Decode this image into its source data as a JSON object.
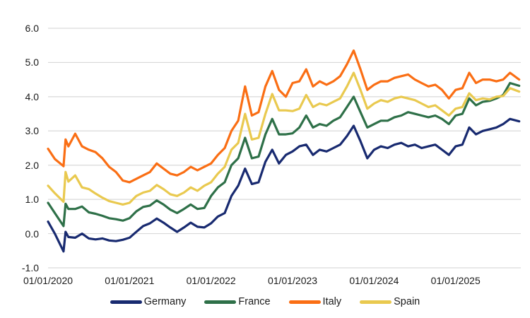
{
  "chart_data": {
    "type": "line",
    "title": "",
    "xlabel": "",
    "ylabel": "",
    "grid": "horizontal",
    "gridline_color": "#d9d9d9",
    "background_color": "#ffffff",
    "text_color": "#1a1a1a",
    "legend_position": "bottom",
    "xlim": [
      2020.0,
      2025.8
    ],
    "ylim": [
      -1.0,
      6.0
    ],
    "y_ticks": [
      6.0,
      5.0,
      4.0,
      3.0,
      2.0,
      1.0,
      0.0,
      -1.0
    ],
    "y_tick_labels": [
      "6.0",
      "5.0",
      "4.0",
      "3.0",
      "2.0",
      "1.0",
      "0.0",
      "-1.0"
    ],
    "x_tick_values": [
      2020,
      2021,
      2022,
      2023,
      2024,
      2025
    ],
    "x_tick_labels": [
      "01/01/2020",
      "01/01/2021",
      "01/01/2022",
      "01/01/2023",
      "01/01/2024",
      "01/01/2025"
    ],
    "x": [
      2020.0,
      2020.083,
      2020.19,
      2020.215,
      2020.25,
      2020.333,
      2020.417,
      2020.5,
      2020.583,
      2020.667,
      2020.75,
      2020.833,
      2020.917,
      2021.0,
      2021.083,
      2021.167,
      2021.25,
      2021.333,
      2021.417,
      2021.5,
      2021.583,
      2021.667,
      2021.75,
      2021.833,
      2021.917,
      2022.0,
      2022.083,
      2022.167,
      2022.25,
      2022.333,
      2022.417,
      2022.5,
      2022.583,
      2022.667,
      2022.75,
      2022.833,
      2022.917,
      2023.0,
      2023.083,
      2023.167,
      2023.25,
      2023.333,
      2023.417,
      2023.5,
      2023.583,
      2023.667,
      2023.75,
      2023.833,
      2023.917,
      2024.0,
      2024.083,
      2024.167,
      2024.25,
      2024.333,
      2024.417,
      2024.5,
      2024.583,
      2024.667,
      2024.75,
      2024.833,
      2024.917,
      2025.0,
      2025.083,
      2025.167,
      2025.25,
      2025.333,
      2025.417,
      2025.5,
      2025.583,
      2025.667,
      2025.78
    ],
    "series": [
      {
        "name": "Germany",
        "color": "#182a70",
        "values": [
          0.35,
          0.0,
          -0.52,
          0.05,
          -0.1,
          -0.12,
          0.0,
          -0.14,
          -0.17,
          -0.14,
          -0.2,
          -0.22,
          -0.18,
          -0.12,
          0.05,
          0.22,
          0.3,
          0.44,
          0.32,
          0.18,
          0.05,
          0.18,
          0.32,
          0.2,
          0.18,
          0.3,
          0.5,
          0.6,
          1.1,
          1.4,
          1.9,
          1.45,
          1.5,
          2.1,
          2.45,
          2.05,
          2.3,
          2.4,
          2.55,
          2.6,
          2.3,
          2.45,
          2.4,
          2.5,
          2.6,
          2.85,
          3.15,
          2.7,
          2.2,
          2.45,
          2.55,
          2.5,
          2.6,
          2.65,
          2.55,
          2.6,
          2.5,
          2.55,
          2.6,
          2.45,
          2.3,
          2.55,
          2.6,
          3.1,
          2.9,
          3.0,
          3.05,
          3.1,
          3.2,
          3.35,
          3.28
        ]
      },
      {
        "name": "France",
        "color": "#2e7048",
        "values": [
          0.9,
          0.6,
          0.22,
          0.87,
          0.72,
          0.72,
          0.79,
          0.62,
          0.58,
          0.52,
          0.45,
          0.42,
          0.38,
          0.45,
          0.65,
          0.78,
          0.82,
          0.97,
          0.85,
          0.7,
          0.6,
          0.72,
          0.85,
          0.72,
          0.75,
          1.1,
          1.35,
          1.5,
          2.0,
          2.2,
          2.8,
          2.2,
          2.25,
          2.9,
          3.35,
          2.9,
          2.9,
          2.93,
          3.1,
          3.45,
          3.1,
          3.2,
          3.15,
          3.3,
          3.4,
          3.7,
          4.0,
          3.55,
          3.1,
          3.2,
          3.3,
          3.3,
          3.4,
          3.45,
          3.55,
          3.5,
          3.45,
          3.4,
          3.45,
          3.35,
          3.2,
          3.45,
          3.5,
          3.95,
          3.75,
          3.85,
          3.88,
          3.95,
          4.05,
          4.4,
          4.32
        ]
      },
      {
        "name": "Italy",
        "color": "#fa6e14",
        "values": [
          2.48,
          2.18,
          1.97,
          2.75,
          2.55,
          2.92,
          2.55,
          2.45,
          2.38,
          2.2,
          1.95,
          1.8,
          1.55,
          1.5,
          1.6,
          1.7,
          1.8,
          2.05,
          1.9,
          1.75,
          1.7,
          1.8,
          1.95,
          1.85,
          1.95,
          2.05,
          2.3,
          2.5,
          3.0,
          3.3,
          4.3,
          3.45,
          3.55,
          4.3,
          4.75,
          4.2,
          4.0,
          4.4,
          4.45,
          4.8,
          4.3,
          4.45,
          4.35,
          4.45,
          4.6,
          4.95,
          5.35,
          4.8,
          4.2,
          4.35,
          4.45,
          4.45,
          4.55,
          4.6,
          4.65,
          4.5,
          4.4,
          4.3,
          4.35,
          4.2,
          3.95,
          4.2,
          4.25,
          4.7,
          4.4,
          4.5,
          4.5,
          4.45,
          4.5,
          4.7,
          4.5
        ]
      },
      {
        "name": "Spain",
        "color": "#e9c94f",
        "values": [
          1.4,
          1.18,
          0.93,
          1.8,
          1.52,
          1.7,
          1.35,
          1.3,
          1.17,
          1.05,
          0.95,
          0.9,
          0.85,
          0.9,
          1.1,
          1.2,
          1.25,
          1.42,
          1.3,
          1.15,
          1.1,
          1.2,
          1.35,
          1.25,
          1.4,
          1.5,
          1.75,
          1.95,
          2.45,
          2.65,
          3.5,
          2.75,
          2.8,
          3.5,
          4.08,
          3.6,
          3.6,
          3.58,
          3.65,
          4.05,
          3.7,
          3.8,
          3.75,
          3.85,
          3.95,
          4.3,
          4.7,
          4.2,
          3.65,
          3.8,
          3.9,
          3.85,
          3.95,
          4.0,
          3.95,
          3.9,
          3.8,
          3.7,
          3.75,
          3.6,
          3.45,
          3.65,
          3.7,
          4.1,
          3.9,
          3.95,
          3.92,
          4.0,
          4.02,
          4.25,
          4.15
        ]
      }
    ]
  }
}
